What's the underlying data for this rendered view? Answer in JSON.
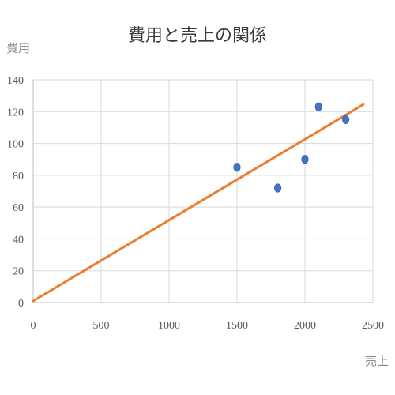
{
  "chart_data": {
    "type": "scatter",
    "title": "費用と売上の関係",
    "xlabel": "売上",
    "ylabel": "費用",
    "xlim": [
      0,
      2500
    ],
    "ylim": [
      0,
      140
    ],
    "x_ticks": [
      0,
      500,
      1000,
      1500,
      2000,
      2500
    ],
    "y_ticks": [
      0,
      20,
      40,
      60,
      80,
      100,
      120,
      140
    ],
    "grid": true,
    "series": [
      {
        "points": [
          {
            "x": 1500,
            "y": 85
          },
          {
            "x": 1800,
            "y": 72
          },
          {
            "x": 2000,
            "y": 90
          },
          {
            "x": 2100,
            "y": 123
          },
          {
            "x": 2300,
            "y": 115
          }
        ],
        "color": "#4472c4"
      }
    ],
    "trendline": {
      "type": "linear",
      "from": {
        "x": 0,
        "y": 1
      },
      "to": {
        "x": 2430,
        "y": 124.5
      },
      "color": "#ed7d31"
    }
  }
}
